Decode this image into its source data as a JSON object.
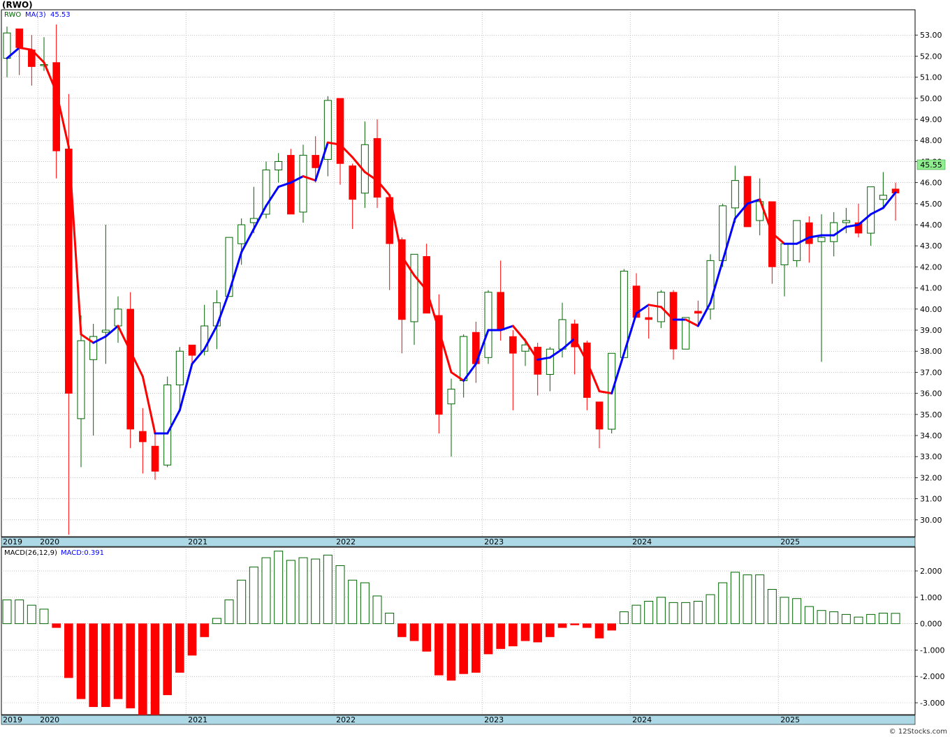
{
  "header": {
    "title": "(RWO)",
    "symbol_label": "RWO",
    "ma_label": "MA(3)",
    "ma_value": "45.53",
    "macd_label": "MACD(26,12,9)",
    "macd_value": "MACD:0.391",
    "last_price_badge": "45.55",
    "watermark": "© 12Stocks.com"
  },
  "colors": {
    "up_candle_border": "#006400",
    "down_candle": "#ff0000",
    "ma_up": "#0000ff",
    "ma_down": "#ff0000",
    "axis_bar": "#add8e6",
    "grid": "#999999",
    "price_badge_bg": "#90ee90"
  },
  "icons": {
    "watermark": "copyright-icon"
  },
  "chart_data": [
    {
      "type": "candlestick",
      "title": "(RWO)",
      "frequency": "monthly",
      "y_axis": {
        "ticks": [
          "30.00",
          "31.00",
          "32.00",
          "33.00",
          "34.00",
          "35.00",
          "36.00",
          "37.00",
          "38.00",
          "39.00",
          "40.00",
          "41.00",
          "42.00",
          "43.00",
          "44.00",
          "45.00",
          "46.00",
          "47.00",
          "48.00",
          "49.00",
          "50.00",
          "51.00",
          "52.00",
          "53.00"
        ],
        "range": [
          29.2,
          54.2
        ]
      },
      "x_axis": {
        "labels": [
          "2019",
          "2020",
          "2021",
          "2022",
          "2023",
          "2024",
          "2025"
        ],
        "range": [
          "2019-10",
          "2025-11"
        ]
      },
      "grid": true,
      "series": [
        {
          "name": "RWO",
          "kind": "ohlc",
          "candles": [
            {
              "d": "2019-10",
              "o": 51.9,
              "h": 53.4,
              "l": 51.0,
              "c": 53.1
            },
            {
              "d": "2019-11",
              "o": 53.3,
              "h": 53.3,
              "l": 51.1,
              "c": 52.4
            },
            {
              "d": "2019-12",
              "o": 52.3,
              "h": 53.0,
              "l": 50.6,
              "c": 51.5
            },
            {
              "d": "2020-01",
              "o": 51.6,
              "h": 52.9,
              "l": 51.3,
              "c": 51.6
            },
            {
              "d": "2020-02",
              "o": 51.7,
              "h": 53.5,
              "l": 46.2,
              "c": 47.5
            },
            {
              "d": "2020-03",
              "o": 47.6,
              "h": 50.2,
              "l": 29.3,
              "c": 36.0
            },
            {
              "d": "2020-04",
              "o": 34.8,
              "h": 39.7,
              "l": 32.5,
              "c": 38.5
            },
            {
              "d": "2020-05",
              "o": 37.6,
              "h": 39.3,
              "l": 34.0,
              "c": 38.7
            },
            {
              "d": "2020-06",
              "o": 38.9,
              "h": 44.0,
              "l": 37.4,
              "c": 39.0
            },
            {
              "d": "2020-07",
              "o": 39.2,
              "h": 40.6,
              "l": 38.4,
              "c": 40.0
            },
            {
              "d": "2020-08",
              "o": 40.0,
              "h": 40.8,
              "l": 33.4,
              "c": 34.3
            },
            {
              "d": "2020-09",
              "o": 34.2,
              "h": 35.3,
              "l": 32.2,
              "c": 33.7
            },
            {
              "d": "2020-10",
              "o": 33.5,
              "h": 34.2,
              "l": 31.9,
              "c": 32.3
            },
            {
              "d": "2020-11",
              "o": 32.6,
              "h": 36.8,
              "l": 32.5,
              "c": 36.4
            },
            {
              "d": "2020-12",
              "o": 36.4,
              "h": 38.2,
              "l": 35.3,
              "c": 38.0
            },
            {
              "d": "2021-01",
              "o": 38.3,
              "h": 38.3,
              "l": 37.4,
              "c": 37.8
            },
            {
              "d": "2021-02",
              "o": 38.0,
              "h": 40.2,
              "l": 37.8,
              "c": 39.2
            },
            {
              "d": "2021-03",
              "o": 39.2,
              "h": 40.9,
              "l": 38.1,
              "c": 40.3
            },
            {
              "d": "2021-04",
              "o": 40.6,
              "h": 43.2,
              "l": 40.6,
              "c": 43.4
            },
            {
              "d": "2021-05",
              "o": 43.1,
              "h": 44.3,
              "l": 42.1,
              "c": 44.0
            },
            {
              "d": "2021-06",
              "o": 44.1,
              "h": 45.8,
              "l": 43.6,
              "c": 44.3
            },
            {
              "d": "2021-07",
              "o": 44.5,
              "h": 47.0,
              "l": 44.3,
              "c": 46.6
            },
            {
              "d": "2021-08",
              "o": 46.6,
              "h": 47.4,
              "l": 46.0,
              "c": 47.0
            },
            {
              "d": "2021-09",
              "o": 47.3,
              "h": 47.6,
              "l": 44.5,
              "c": 44.5
            },
            {
              "d": "2021-10",
              "o": 44.6,
              "h": 47.8,
              "l": 44.1,
              "c": 47.3
            },
            {
              "d": "2021-11",
              "o": 47.3,
              "h": 48.2,
              "l": 46.0,
              "c": 46.7
            },
            {
              "d": "2021-12",
              "o": 47.1,
              "h": 50.1,
              "l": 46.3,
              "c": 49.9
            },
            {
              "d": "2022-01",
              "o": 50.0,
              "h": 50.0,
              "l": 45.9,
              "c": 46.9
            },
            {
              "d": "2022-02",
              "o": 46.8,
              "h": 46.9,
              "l": 43.8,
              "c": 45.2
            },
            {
              "d": "2022-03",
              "o": 45.5,
              "h": 48.9,
              "l": 44.8,
              "c": 47.8
            },
            {
              "d": "2022-04",
              "o": 48.1,
              "h": 49.0,
              "l": 44.8,
              "c": 45.3
            },
            {
              "d": "2022-05",
              "o": 45.3,
              "h": 45.3,
              "l": 40.9,
              "c": 43.1
            },
            {
              "d": "2022-06",
              "o": 43.3,
              "h": 43.4,
              "l": 37.9,
              "c": 39.5
            },
            {
              "d": "2022-07",
              "o": 39.4,
              "h": 42.6,
              "l": 38.3,
              "c": 42.6
            },
            {
              "d": "2022-08",
              "o": 42.5,
              "h": 43.1,
              "l": 39.8,
              "c": 39.8
            },
            {
              "d": "2022-09",
              "o": 39.7,
              "h": 40.7,
              "l": 34.1,
              "c": 35.0
            },
            {
              "d": "2022-10",
              "o": 35.5,
              "h": 36.7,
              "l": 33.0,
              "c": 36.2
            },
            {
              "d": "2022-11",
              "o": 36.6,
              "h": 38.8,
              "l": 35.8,
              "c": 38.7
            },
            {
              "d": "2022-12",
              "o": 38.9,
              "h": 39.4,
              "l": 36.5,
              "c": 37.4
            },
            {
              "d": "2023-01",
              "o": 37.7,
              "h": 40.9,
              "l": 37.4,
              "c": 40.8
            },
            {
              "d": "2023-02",
              "o": 40.8,
              "h": 42.3,
              "l": 38.5,
              "c": 39.0
            },
            {
              "d": "2023-03",
              "o": 38.7,
              "h": 39.0,
              "l": 35.2,
              "c": 37.9
            },
            {
              "d": "2023-04",
              "o": 38.0,
              "h": 38.6,
              "l": 37.3,
              "c": 38.3
            },
            {
              "d": "2023-05",
              "o": 38.2,
              "h": 38.4,
              "l": 35.9,
              "c": 36.9
            },
            {
              "d": "2023-06",
              "o": 36.9,
              "h": 38.2,
              "l": 36.1,
              "c": 38.1
            },
            {
              "d": "2023-07",
              "o": 38.1,
              "h": 40.3,
              "l": 37.7,
              "c": 39.5
            },
            {
              "d": "2023-08",
              "o": 39.3,
              "h": 39.5,
              "l": 36.9,
              "c": 38.2
            },
            {
              "d": "2023-09",
              "o": 38.4,
              "h": 38.5,
              "l": 35.2,
              "c": 35.8
            },
            {
              "d": "2023-10",
              "o": 35.6,
              "h": 35.6,
              "l": 33.4,
              "c": 34.3
            },
            {
              "d": "2023-11",
              "o": 34.3,
              "h": 37.8,
              "l": 34.1,
              "c": 37.9
            },
            {
              "d": "2023-12",
              "o": 37.7,
              "h": 41.9,
              "l": 37.7,
              "c": 41.8
            },
            {
              "d": "2024-01",
              "o": 41.1,
              "h": 41.7,
              "l": 39.6,
              "c": 39.6
            },
            {
              "d": "2024-02",
              "o": 39.6,
              "h": 40.1,
              "l": 38.6,
              "c": 39.5
            },
            {
              "d": "2024-03",
              "o": 39.4,
              "h": 40.9,
              "l": 39.1,
              "c": 40.8
            },
            {
              "d": "2024-04",
              "o": 40.8,
              "h": 40.9,
              "l": 37.6,
              "c": 38.1
            },
            {
              "d": "2024-05",
              "o": 38.1,
              "h": 39.6,
              "l": 38.1,
              "c": 39.6
            },
            {
              "d": "2024-06",
              "o": 39.9,
              "h": 40.4,
              "l": 39.3,
              "c": 39.8
            },
            {
              "d": "2024-07",
              "o": 40.0,
              "h": 42.6,
              "l": 39.5,
              "c": 42.3
            },
            {
              "d": "2024-08",
              "o": 42.3,
              "h": 45.0,
              "l": 42.0,
              "c": 44.9
            },
            {
              "d": "2024-09",
              "o": 44.8,
              "h": 46.8,
              "l": 44.1,
              "c": 46.1
            },
            {
              "d": "2024-10",
              "o": 46.3,
              "h": 46.3,
              "l": 43.9,
              "c": 43.9
            },
            {
              "d": "2024-11",
              "o": 44.2,
              "h": 46.2,
              "l": 43.5,
              "c": 45.1
            },
            {
              "d": "2024-12",
              "o": 45.1,
              "h": 45.1,
              "l": 41.2,
              "c": 42.0
            },
            {
              "d": "2025-01",
              "o": 42.1,
              "h": 42.9,
              "l": 40.6,
              "c": 43.1
            },
            {
              "d": "2025-02",
              "o": 42.3,
              "h": 44.2,
              "l": 42.0,
              "c": 44.2
            },
            {
              "d": "2025-03",
              "o": 44.1,
              "h": 44.4,
              "l": 42.2,
              "c": 43.1
            },
            {
              "d": "2025-04",
              "o": 43.2,
              "h": 44.5,
              "l": 37.5,
              "c": 43.4
            },
            {
              "d": "2025-05",
              "o": 43.2,
              "h": 44.6,
              "l": 42.5,
              "c": 44.1
            },
            {
              "d": "2025-06",
              "o": 44.1,
              "h": 44.8,
              "l": 43.6,
              "c": 44.2
            },
            {
              "d": "2025-07",
              "o": 44.1,
              "h": 45.0,
              "l": 43.4,
              "c": 43.6
            },
            {
              "d": "2025-08",
              "o": 43.6,
              "h": 45.8,
              "l": 43.0,
              "c": 45.8
            },
            {
              "d": "2025-09",
              "o": 45.2,
              "h": 46.5,
              "l": 44.8,
              "c": 45.4
            },
            {
              "d": "2025-10",
              "o": 45.7,
              "h": 46.0,
              "l": 44.2,
              "c": 45.5
            }
          ]
        },
        {
          "name": "MA(3)",
          "kind": "line",
          "values": [
            51.9,
            52.4,
            52.3,
            51.7,
            50.3,
            47.7,
            38.8,
            38.4,
            38.7,
            39.2,
            38.0,
            36.8,
            34.1,
            34.1,
            35.2,
            37.4,
            38.1,
            39.2,
            40.8,
            42.7,
            43.8,
            44.9,
            45.8,
            46.0,
            46.3,
            46.1,
            47.9,
            47.8,
            47.2,
            46.5,
            46.1,
            45.4,
            42.5,
            41.6,
            40.9,
            39.0,
            37.0,
            36.6,
            37.4,
            39.0,
            39.0,
            39.2,
            38.5,
            37.6,
            37.7,
            38.1,
            38.6,
            37.5,
            36.1,
            36.0,
            37.9,
            39.8,
            40.2,
            40.1,
            39.5,
            39.5,
            39.2,
            40.3,
            42.3,
            44.3,
            45.0,
            45.2,
            43.6,
            43.1,
            43.1,
            43.4,
            43.5,
            43.5,
            43.9,
            44.0,
            44.5,
            44.8,
            45.53
          ]
        }
      ]
    },
    {
      "type": "bar",
      "title": "MACD(26,12,9)",
      "frequency": "monthly",
      "x_axis": {
        "labels": [
          "2019",
          "2020",
          "2021",
          "2022",
          "2023",
          "2024",
          "2025"
        ],
        "range": [
          "2019-10",
          "2025-11"
        ]
      },
      "y_axis": {
        "ticks": [
          "-3.000",
          "-2.000",
          "-1.000",
          "0.000",
          "1.000",
          "2.000"
        ],
        "range": [
          -3.45,
          2.9
        ]
      },
      "grid": true,
      "series": [
        {
          "name": "MACD",
          "values": [
            0.9,
            0.9,
            0.7,
            0.55,
            -0.15,
            -2.05,
            -2.85,
            -3.15,
            -3.15,
            -2.85,
            -3.2,
            -3.45,
            -3.45,
            -2.7,
            -1.85,
            -1.2,
            -0.5,
            0.2,
            0.9,
            1.65,
            2.15,
            2.5,
            2.75,
            2.4,
            2.5,
            2.45,
            2.6,
            2.2,
            1.65,
            1.55,
            1.05,
            0.4,
            -0.5,
            -0.65,
            -1.05,
            -1.95,
            -2.15,
            -1.9,
            -1.85,
            -1.15,
            -0.95,
            -0.85,
            -0.65,
            -0.7,
            -0.5,
            -0.15,
            -0.05,
            -0.15,
            -0.55,
            -0.25,
            0.45,
            0.7,
            0.85,
            1.0,
            0.8,
            0.8,
            0.85,
            1.1,
            1.55,
            1.95,
            1.85,
            1.85,
            1.3,
            1.0,
            0.95,
            0.65,
            0.5,
            0.45,
            0.35,
            0.25,
            0.35,
            0.4,
            0.391
          ]
        }
      ]
    }
  ]
}
